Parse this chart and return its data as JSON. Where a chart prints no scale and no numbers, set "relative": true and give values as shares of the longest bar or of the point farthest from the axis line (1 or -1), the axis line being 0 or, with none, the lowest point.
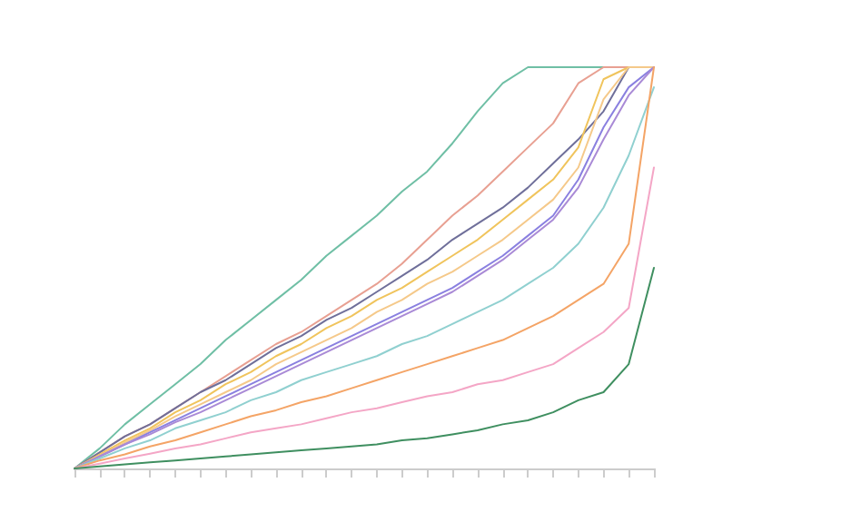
{
  "chart_data": {
    "type": "line",
    "relative": true,
    "marker": "none",
    "line_style": "solid",
    "legend": false,
    "categories": [
      null,
      null,
      null,
      null,
      null,
      null,
      null,
      null,
      null,
      null,
      null,
      null,
      null,
      null,
      null,
      null,
      null,
      null,
      null,
      null,
      null,
      null,
      null,
      null
    ],
    "series": [
      {
        "color": "#6fbfa5",
        "values": [
          0,
          0.05,
          0.11,
          0.16,
          0.21,
          0.26,
          0.32,
          0.37,
          0.42,
          0.47,
          0.53,
          0.58,
          0.63,
          0.69,
          0.74,
          0.81,
          0.89,
          0.96,
          1,
          1,
          1,
          1,
          1,
          1
        ]
      },
      {
        "color": "#e8a092",
        "values": [
          0,
          0.04,
          0.08,
          0.11,
          0.15,
          0.19,
          0.23,
          0.27,
          0.31,
          0.34,
          0.38,
          0.42,
          0.46,
          0.51,
          0.57,
          0.63,
          0.68,
          0.74,
          0.8,
          0.86,
          0.96,
          1,
          1,
          1
        ]
      },
      {
        "color": "#6f6f9a",
        "values": [
          0,
          0.04,
          0.08,
          0.11,
          0.15,
          0.19,
          0.22,
          0.26,
          0.3,
          0.33,
          0.37,
          0.4,
          0.44,
          0.48,
          0.52,
          0.57,
          0.61,
          0.65,
          0.7,
          0.76,
          0.82,
          0.89,
          1,
          1
        ]
      },
      {
        "color": "#f0c45c",
        "values": [
          0,
          0.035,
          0.07,
          0.1,
          0.14,
          0.17,
          0.21,
          0.24,
          0.28,
          0.31,
          0.35,
          0.38,
          0.42,
          0.45,
          0.49,
          0.53,
          0.57,
          0.62,
          0.67,
          0.72,
          0.8,
          0.97,
          1,
          1
        ]
      },
      {
        "color": "#f5c98a",
        "values": [
          0,
          0.032,
          0.065,
          0.095,
          0.13,
          0.16,
          0.19,
          0.22,
          0.26,
          0.29,
          0.32,
          0.35,
          0.39,
          0.42,
          0.46,
          0.49,
          0.53,
          0.57,
          0.62,
          0.67,
          0.75,
          0.92,
          1,
          1
        ]
      },
      {
        "color": "#8a80e0",
        "values": [
          0,
          0.03,
          0.06,
          0.09,
          0.12,
          0.15,
          0.18,
          0.21,
          0.24,
          0.27,
          0.3,
          0.33,
          0.36,
          0.39,
          0.42,
          0.45,
          0.49,
          0.53,
          0.58,
          0.63,
          0.72,
          0.85,
          0.95,
          1
        ]
      },
      {
        "color": "#a98ad6",
        "values": [
          0,
          0.03,
          0.06,
          0.085,
          0.115,
          0.14,
          0.17,
          0.2,
          0.23,
          0.26,
          0.29,
          0.32,
          0.35,
          0.38,
          0.41,
          0.44,
          0.48,
          0.52,
          0.57,
          0.62,
          0.7,
          0.82,
          0.93,
          1
        ]
      },
      {
        "color": "#90d0d0",
        "values": [
          0,
          0.025,
          0.05,
          0.07,
          0.1,
          0.12,
          0.14,
          0.17,
          0.19,
          0.22,
          0.24,
          0.26,
          0.28,
          0.31,
          0.33,
          0.36,
          0.39,
          0.42,
          0.46,
          0.5,
          0.56,
          0.65,
          0.78,
          0.95
        ]
      },
      {
        "color": "#f4a466",
        "values": [
          0,
          0.02,
          0.035,
          0.055,
          0.07,
          0.09,
          0.11,
          0.13,
          0.145,
          0.165,
          0.18,
          0.2,
          0.22,
          0.24,
          0.26,
          0.28,
          0.3,
          0.32,
          0.35,
          0.38,
          0.42,
          0.46,
          0.56,
          1
        ]
      },
      {
        "color": "#f4a6c6",
        "values": [
          0,
          0.012,
          0.025,
          0.037,
          0.05,
          0.06,
          0.075,
          0.09,
          0.1,
          0.11,
          0.125,
          0.14,
          0.15,
          0.165,
          0.18,
          0.19,
          0.21,
          0.22,
          0.24,
          0.26,
          0.3,
          0.34,
          0.4,
          0.75
        ]
      },
      {
        "color": "#3f8f60",
        "values": [
          0,
          0.005,
          0.01,
          0.015,
          0.02,
          0.025,
          0.03,
          0.035,
          0.04,
          0.045,
          0.05,
          0.055,
          0.06,
          0.07,
          0.075,
          0.085,
          0.095,
          0.11,
          0.12,
          0.14,
          0.17,
          0.19,
          0.26,
          0.5
        ]
      }
    ]
  }
}
